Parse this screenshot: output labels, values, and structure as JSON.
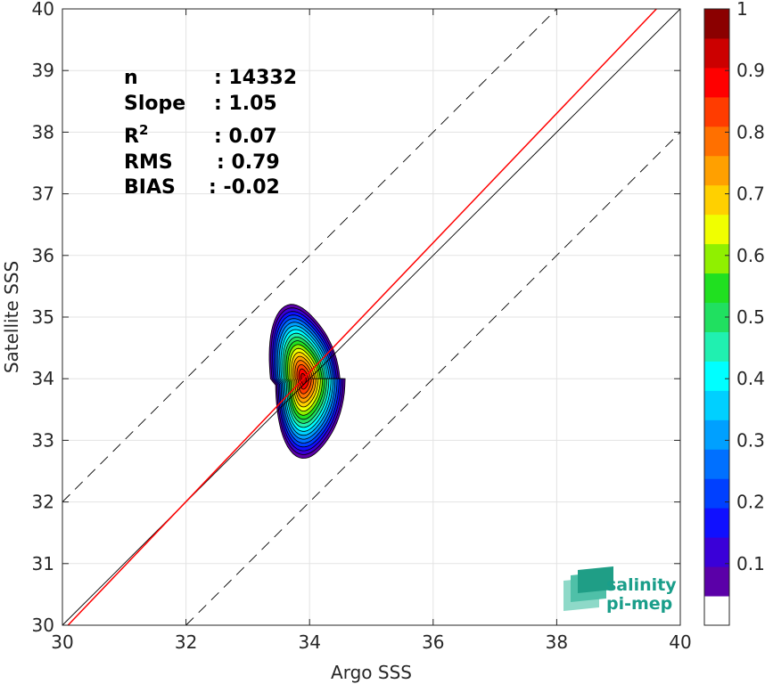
{
  "chart_data": {
    "type": "scatter",
    "plot_kind": "density contour",
    "xlabel": "Argo SSS",
    "ylabel": "Satellite SSS",
    "xlim": [
      30,
      40
    ],
    "ylim": [
      30,
      40
    ],
    "xticks": [
      30,
      32,
      34,
      36,
      38,
      40
    ],
    "yticks": [
      30,
      31,
      32,
      33,
      34,
      35,
      36,
      37,
      38,
      39,
      40
    ],
    "grid": true,
    "stats": [
      {
        "label": "n",
        "value": ": 14332"
      },
      {
        "label": "Slope",
        "value": ": 1.05"
      },
      {
        "label": "R",
        "sup": "2",
        "value": ": 0.07"
      },
      {
        "label": "RMS",
        "value": ": 0.79"
      },
      {
        "label": "BIAS",
        "value": ": -0.02"
      }
    ],
    "lines": [
      {
        "name": "one-to-one",
        "color": "#000000",
        "style": "solid",
        "intercept": 0,
        "slope": 1
      },
      {
        "name": "fit",
        "color": "#ff0000",
        "style": "solid",
        "slope": 1.05,
        "through": [
          33.9,
          34.0
        ]
      },
      {
        "name": "upper-bound",
        "color": "#000000",
        "style": "dashed",
        "intercept": 2,
        "slope": 1
      },
      {
        "name": "lower-bound",
        "color": "#000000",
        "style": "dashed",
        "intercept": -2,
        "slope": 1
      }
    ],
    "density_center": [
      33.9,
      34.0
    ],
    "contour_levels": [
      0.05,
      0.1,
      0.15,
      0.2,
      0.25,
      0.3,
      0.35,
      0.4,
      0.45,
      0.5,
      0.55,
      0.6,
      0.65,
      0.7,
      0.75,
      0.8,
      0.85,
      0.9,
      0.95
    ],
    "colorbar": {
      "range": [
        0,
        1
      ],
      "ticks": [
        0.1,
        0.2,
        0.3,
        0.4,
        0.5,
        0.6,
        0.7,
        0.8,
        0.9,
        1
      ],
      "colors": [
        "#ffffff",
        "#5b00a8",
        "#3a00d8",
        "#1010ff",
        "#0040ff",
        "#0070ff",
        "#00a0ff",
        "#00d0ff",
        "#00ffff",
        "#20f0b0",
        "#20e060",
        "#20e020",
        "#90f000",
        "#f0ff00",
        "#ffd000",
        "#ffa000",
        "#ff7000",
        "#ff3c00",
        "#ff0000",
        "#cc0000",
        "#8b0000"
      ]
    }
  },
  "logo": {
    "line1": "salinity",
    "line2": "pi-mep"
  }
}
